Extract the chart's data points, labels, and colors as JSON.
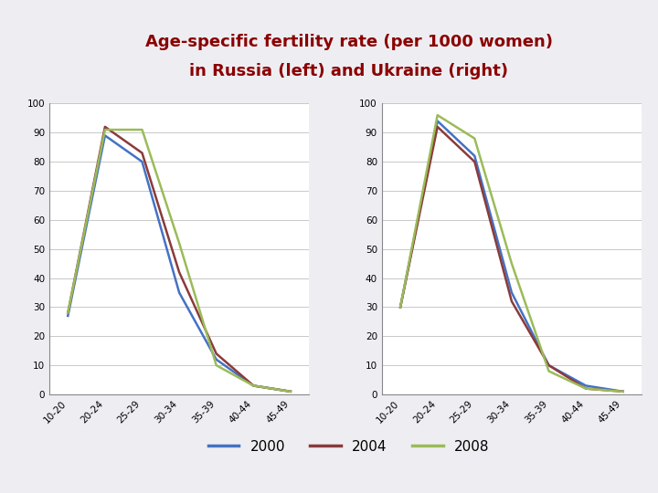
{
  "title_line1": "Age-specific fertility rate (per 1000 women)",
  "title_line2": "in Russia (left) and Ukraine (right)",
  "title_color": "#8B0000",
  "bg_color": "#EEEEF2",
  "left_accent_color": "#8B0000",
  "bottom_bar_color": "#B0B0B8",
  "plot_bg": "#FFFFFF",
  "categories": [
    "10-20",
    "20-24",
    "25-29",
    "30-34",
    "35-39",
    "40-44",
    "45-49"
  ],
  "russia": {
    "2000": [
      27,
      89,
      80,
      35,
      12,
      3,
      1
    ],
    "2004": [
      28,
      92,
      83,
      42,
      14,
      3,
      1
    ],
    "2008": [
      28,
      91,
      91,
      52,
      10,
      3,
      1
    ]
  },
  "ukraine": {
    "2000": [
      30,
      94,
      82,
      35,
      10,
      3,
      1
    ],
    "2004": [
      30,
      92,
      80,
      32,
      10,
      2,
      1
    ],
    "2008": [
      30,
      96,
      88,
      45,
      8,
      2,
      1
    ]
  },
  "colors": {
    "2000": "#4472C4",
    "2004": "#8B3A3A",
    "2008": "#9BBB59"
  },
  "ylim": [
    0,
    100
  ],
  "yticks": [
    0,
    10,
    20,
    30,
    40,
    50,
    60,
    70,
    80,
    90,
    100
  ],
  "legend_labels": [
    "2000",
    "2004",
    "2008"
  ],
  "line_width": 1.8,
  "title_fontsize": 13,
  "tick_fontsize": 7.5,
  "legend_fontsize": 11
}
